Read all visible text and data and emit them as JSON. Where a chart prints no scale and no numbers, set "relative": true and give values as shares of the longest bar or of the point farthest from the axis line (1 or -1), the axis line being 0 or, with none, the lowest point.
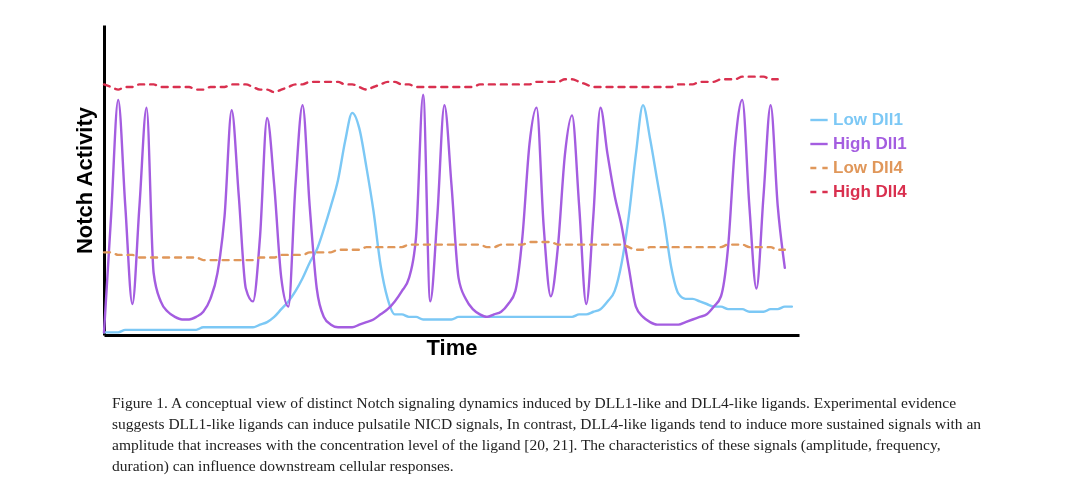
{
  "chart_data": {
    "type": "line",
    "relative": true,
    "xlabel": "Time",
    "ylabel": "Notch Activity",
    "legend": "right",
    "grid": false,
    "tick_labels": false,
    "annotations": [
      "Figure 1. A conceptual view of distinct Notch signaling dynamics induced by DLL1-like and DLL4-like ligands. Experimental evidence suggests DLL1-like ligands can induce pulsatile NICD signals, In contrast, DLL4-like ligands tend to induce more sustained signals with an amplitude that increases with the concentration level of the ligand [20, 21]. The characteristics of these signals (amplitude, frequency, duration) can influence downstream cellular responses."
    ],
    "categories": [
      null,
      null,
      null,
      null,
      null,
      null,
      null,
      null,
      null,
      null,
      null,
      null,
      null,
      null,
      null,
      null,
      null,
      null,
      null,
      null,
      null,
      null,
      null,
      null,
      null,
      null,
      null,
      null,
      null,
      null,
      null,
      null,
      null,
      null,
      null,
      null,
      null,
      null,
      null,
      null,
      null,
      null,
      null,
      null,
      null,
      null,
      null,
      null,
      null,
      null,
      null,
      null,
      null,
      null,
      null,
      null,
      null,
      null,
      null,
      null,
      null,
      null,
      null,
      null,
      null,
      null,
      null,
      null,
      null,
      null,
      null,
      null,
      null,
      null,
      null,
      null,
      null,
      null,
      null,
      null,
      null,
      null,
      null,
      null,
      null,
      null,
      null,
      null,
      null,
      null,
      null,
      null,
      null,
      null,
      null,
      null,
      null,
      null,
      null
    ],
    "series": [
      {
        "name": "Low Dll1",
        "color": "#7cc8f5",
        "line_style": "solid",
        "values": [
          0.01,
          0.01,
          0.01,
          0.02,
          0.02,
          0.02,
          0.02,
          0.02,
          0.02,
          0.02,
          0.02,
          0.02,
          0.02,
          0.02,
          0.03,
          0.03,
          0.03,
          0.03,
          0.03,
          0.03,
          0.03,
          0.03,
          0.04,
          0.05,
          0.07,
          0.1,
          0.13,
          0.17,
          0.22,
          0.28,
          0.33,
          0.41,
          0.5,
          0.6,
          0.75,
          0.86,
          0.8,
          0.65,
          0.48,
          0.27,
          0.14,
          0.08,
          0.08,
          0.07,
          0.07,
          0.06,
          0.06,
          0.06,
          0.06,
          0.06,
          0.07,
          0.07,
          0.07,
          0.07,
          0.07,
          0.07,
          0.07,
          0.07,
          0.07,
          0.07,
          0.07,
          0.07,
          0.07,
          0.07,
          0.07,
          0.07,
          0.07,
          0.08,
          0.08,
          0.09,
          0.1,
          0.13,
          0.17,
          0.28,
          0.46,
          0.7,
          0.89,
          0.76,
          0.6,
          0.44,
          0.26,
          0.16,
          0.14,
          0.14,
          0.13,
          0.12,
          0.11,
          0.11,
          0.1,
          0.1,
          0.1,
          0.09,
          0.09,
          0.09,
          0.1,
          0.1,
          0.11,
          0.11,
          null
        ]
      },
      {
        "name": "High Dll1",
        "color": "#a45de0",
        "line_style": "solid",
        "values": [
          0.01,
          0.46,
          0.91,
          0.5,
          0.12,
          0.5,
          0.88,
          0.24,
          0.13,
          0.09,
          0.07,
          0.06,
          0.06,
          0.07,
          0.09,
          0.14,
          0.24,
          0.46,
          0.87,
          0.54,
          0.18,
          0.13,
          0.38,
          0.84,
          0.58,
          0.22,
          0.11,
          0.58,
          0.89,
          0.5,
          0.18,
          0.07,
          0.04,
          0.03,
          0.03,
          0.03,
          0.04,
          0.05,
          0.06,
          0.08,
          0.1,
          0.13,
          0.17,
          0.22,
          0.38,
          0.93,
          0.13,
          0.46,
          0.89,
          0.58,
          0.22,
          0.14,
          0.1,
          0.08,
          0.07,
          0.08,
          0.09,
          0.12,
          0.17,
          0.38,
          0.74,
          0.88,
          0.42,
          0.15,
          0.34,
          0.7,
          0.85,
          0.5,
          0.12,
          0.46,
          0.88,
          0.7,
          0.54,
          0.42,
          0.26,
          0.11,
          0.07,
          0.05,
          0.04,
          0.04,
          0.04,
          0.04,
          0.05,
          0.06,
          0.07,
          0.08,
          0.11,
          0.15,
          0.34,
          0.74,
          0.91,
          0.5,
          0.18,
          0.54,
          0.89,
          0.5,
          0.26,
          null,
          null
        ]
      },
      {
        "name": "Low Dll4",
        "color": "#e0975a",
        "line_style": "dashed",
        "values": [
          0.32,
          0.32,
          0.31,
          0.31,
          0.31,
          0.3,
          0.3,
          0.3,
          0.3,
          0.3,
          0.3,
          0.3,
          0.3,
          0.3,
          0.29,
          0.29,
          0.29,
          0.29,
          0.29,
          0.29,
          0.29,
          0.29,
          0.3,
          0.3,
          0.3,
          0.31,
          0.31,
          0.31,
          0.31,
          0.32,
          0.32,
          0.32,
          0.32,
          0.33,
          0.33,
          0.33,
          0.33,
          0.34,
          0.34,
          0.34,
          0.34,
          0.34,
          0.34,
          0.35,
          0.35,
          0.35,
          0.35,
          0.35,
          0.35,
          0.35,
          0.35,
          0.35,
          0.35,
          0.35,
          0.34,
          0.34,
          0.35,
          0.35,
          0.35,
          0.35,
          0.36,
          0.36,
          0.36,
          0.36,
          0.35,
          0.35,
          0.35,
          0.35,
          0.35,
          0.35,
          0.35,
          0.35,
          0.35,
          0.35,
          0.34,
          0.33,
          0.33,
          0.34,
          0.34,
          0.34,
          0.34,
          0.34,
          0.34,
          0.34,
          0.34,
          0.34,
          0.34,
          0.34,
          0.35,
          0.35,
          0.35,
          0.34,
          0.34,
          0.34,
          0.34,
          0.33,
          0.33,
          null,
          null
        ]
      },
      {
        "name": "High Dll4",
        "color": "#d9304f",
        "line_style": "dashed",
        "values": [
          0.97,
          0.96,
          0.95,
          0.96,
          0.96,
          0.97,
          0.97,
          0.97,
          0.96,
          0.96,
          0.96,
          0.96,
          0.96,
          0.95,
          0.95,
          0.96,
          0.96,
          0.96,
          0.97,
          0.97,
          0.97,
          0.96,
          0.95,
          0.95,
          0.94,
          0.95,
          0.96,
          0.97,
          0.97,
          0.98,
          0.98,
          0.98,
          0.98,
          0.98,
          0.97,
          0.97,
          0.96,
          0.95,
          0.96,
          0.97,
          0.98,
          0.98,
          0.97,
          0.97,
          0.96,
          0.96,
          0.96,
          0.96,
          0.96,
          0.96,
          0.96,
          0.96,
          0.96,
          0.97,
          0.97,
          0.97,
          0.97,
          0.97,
          0.97,
          0.97,
          0.97,
          0.98,
          0.98,
          0.98,
          0.98,
          0.99,
          0.99,
          0.98,
          0.97,
          0.96,
          0.96,
          0.96,
          0.96,
          0.96,
          0.96,
          0.96,
          0.96,
          0.96,
          0.96,
          0.96,
          0.96,
          0.97,
          0.97,
          0.97,
          0.98,
          0.98,
          0.98,
          0.99,
          0.99,
          0.99,
          1,
          1,
          1,
          1,
          0.99,
          0.99,
          null,
          null,
          null
        ]
      }
    ]
  }
}
